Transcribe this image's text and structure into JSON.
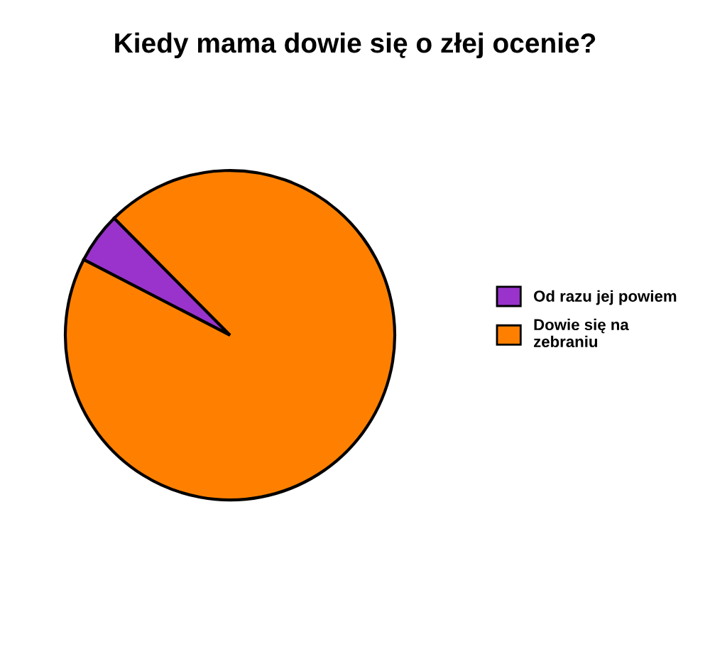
{
  "chart_data": {
    "type": "pie",
    "title": "Kiedy mama dowie się o złej ocenie?",
    "categories": [
      "Od razu jej powiem",
      "Dowie się na\nzebraniu"
    ],
    "values": [
      5,
      95
    ],
    "colors": [
      "#9933cc",
      "#ff8000"
    ],
    "legend": "right"
  }
}
